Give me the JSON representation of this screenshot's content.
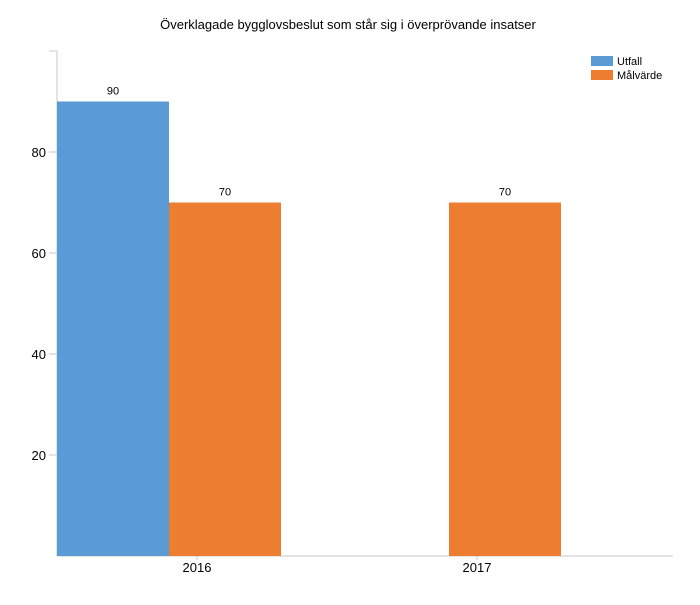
{
  "chart_data": {
    "type": "bar",
    "title": "Överklagade bygglovsbeslut som står sig i överprövande insatser",
    "xlabel": "",
    "ylabel": "",
    "categories": [
      "2016",
      "2017"
    ],
    "series": [
      {
        "name": "Utfall",
        "color": "#5B9BD5",
        "values": [
          90,
          null
        ]
      },
      {
        "name": "Målvärde",
        "color": "#ED7D31",
        "values": [
          70,
          70
        ]
      }
    ],
    "ylim": [
      0,
      100
    ],
    "yticks": [
      20,
      40,
      60,
      80
    ],
    "grid": false,
    "legend_position": "top-right",
    "show_data_labels": true
  }
}
